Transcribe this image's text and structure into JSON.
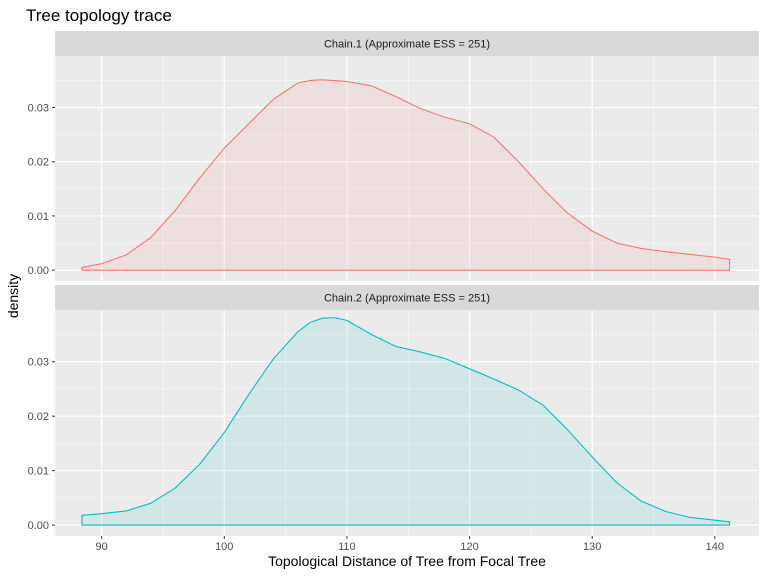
{
  "chart_data": {
    "type": "area",
    "title": "Tree topology trace",
    "xlabel": "Topological Distance of Tree from Focal Tree",
    "ylabel": "density",
    "xlim": [
      86.2,
      143.6
    ],
    "ylim": [
      -0.002,
      0.0395
    ],
    "x_ticks": [
      90,
      100,
      110,
      120,
      130,
      140
    ],
    "y_ticks": [
      0.0,
      0.01,
      0.02,
      0.03
    ],
    "x_tick_labels": [
      "90",
      "100",
      "110",
      "120",
      "130",
      "140"
    ],
    "y_tick_labels": [
      "0.00",
      "0.01",
      "0.02",
      "0.03"
    ],
    "grid": true,
    "legend": "none",
    "panels": [
      {
        "strip": "Chain.1 (Approximate ESS = 251)",
        "color": "#F8766D",
        "fill": "#F8766D",
        "x": [
          88.4,
          90,
          92,
          94,
          96,
          98,
          100,
          102,
          104,
          106,
          107,
          108,
          110,
          112,
          114,
          116,
          118,
          120,
          122,
          124,
          126,
          128,
          130,
          132,
          134,
          136,
          138,
          140,
          141.2
        ],
        "y": [
          0.0005,
          0.0012,
          0.0028,
          0.006,
          0.011,
          0.017,
          0.0225,
          0.027,
          0.0315,
          0.0345,
          0.035,
          0.0351,
          0.0348,
          0.034,
          0.032,
          0.0298,
          0.0282,
          0.027,
          0.0245,
          0.02,
          0.015,
          0.0105,
          0.0072,
          0.005,
          0.004,
          0.0034,
          0.0029,
          0.0024,
          0.002
        ]
      },
      {
        "strip": "Chain.2 (Approximate ESS = 251)",
        "color": "#00BFC4",
        "fill": "#00BFC4",
        "x": [
          88.4,
          90,
          92,
          94,
          96,
          98,
          100,
          102,
          104,
          106,
          107,
          108,
          109,
          110,
          112,
          114,
          116,
          118,
          120,
          122,
          124,
          126,
          128,
          130,
          132,
          134,
          136,
          138,
          140,
          141.2
        ],
        "y": [
          0.0018,
          0.0021,
          0.0026,
          0.004,
          0.0068,
          0.0112,
          0.017,
          0.024,
          0.0305,
          0.0355,
          0.0372,
          0.038,
          0.0381,
          0.0376,
          0.035,
          0.0328,
          0.0318,
          0.0306,
          0.0287,
          0.0268,
          0.0248,
          0.022,
          0.0175,
          0.0125,
          0.0078,
          0.0044,
          0.0025,
          0.0014,
          0.0009,
          0.0006
        ]
      }
    ]
  }
}
